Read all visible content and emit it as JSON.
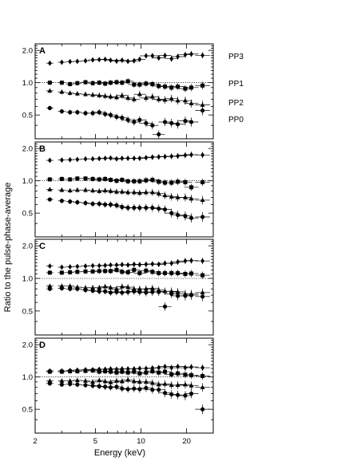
{
  "figure": {
    "ylabel": "Ratio to the pulse-phase-average",
    "xlabel": "Energy (keV)"
  },
  "chart_data": [
    {
      "type": "scatter",
      "panel_label": "A",
      "xscale": "log",
      "yscale": "log",
      "xlim": [
        2,
        30
      ],
      "ylim": [
        0.3,
        2.3
      ],
      "xticks": [
        "2",
        "5",
        "10",
        "20"
      ],
      "yticks": [
        "0.5",
        "1.0",
        "2.0"
      ],
      "reference_line": 1.0,
      "grid": false,
      "series": [
        {
          "name": "PP3",
          "marker": "diamond",
          "x": [
            2.5,
            3.0,
            3.4,
            3.8,
            4.3,
            4.8,
            5.3,
            5.8,
            6.3,
            6.9,
            7.5,
            8.2,
            9.0,
            9.8,
            10.8,
            11.9,
            13.1,
            14.4,
            15.9,
            17.5,
            19.6,
            21.5,
            25.5
          ],
          "y": [
            1.52,
            1.55,
            1.57,
            1.58,
            1.6,
            1.63,
            1.64,
            1.65,
            1.62,
            1.59,
            1.62,
            1.58,
            1.6,
            1.65,
            1.78,
            1.78,
            1.7,
            1.79,
            1.67,
            1.75,
            1.82,
            1.85,
            1.8
          ]
        },
        {
          "name": "PP1",
          "marker": "square",
          "x": [
            2.5,
            3.0,
            3.4,
            3.8,
            4.3,
            4.8,
            5.3,
            5.8,
            6.3,
            6.9,
            7.5,
            8.2,
            9.0,
            9.8,
            10.8,
            11.9,
            13.1,
            14.4,
            15.9,
            17.5,
            19.6,
            21.5,
            25.5
          ],
          "y": [
            1.0,
            1.0,
            0.97,
            0.99,
            1.01,
            0.99,
            1.0,
            0.98,
            1.0,
            1.01,
            1.0,
            1.03,
            0.96,
            0.96,
            0.98,
            0.97,
            0.93,
            0.92,
            0.9,
            0.92,
            0.88,
            0.9,
            0.94
          ]
        },
        {
          "name": "PP2",
          "marker": "triangle",
          "x": [
            2.5,
            3.0,
            3.4,
            3.8,
            4.3,
            4.8,
            5.3,
            5.8,
            6.3,
            6.9,
            7.5,
            8.2,
            9.0,
            9.8,
            10.8,
            11.9,
            13.1,
            14.4,
            15.9,
            17.5,
            19.6,
            21.5,
            25.5
          ],
          "y": [
            0.84,
            0.82,
            0.8,
            0.79,
            0.78,
            0.77,
            0.76,
            0.75,
            0.74,
            0.73,
            0.76,
            0.72,
            0.7,
            0.78,
            0.72,
            0.74,
            0.7,
            0.69,
            0.71,
            0.68,
            0.68,
            0.64,
            0.62
          ]
        },
        {
          "name": "PP0",
          "marker": "circle",
          "x": [
            2.5,
            3.0,
            3.4,
            3.8,
            4.3,
            4.8,
            5.3,
            5.8,
            6.3,
            6.9,
            7.5,
            8.2,
            9.0,
            9.8,
            10.8,
            11.9,
            13.1,
            14.4,
            15.9,
            17.5,
            19.6,
            21.5,
            25.5
          ],
          "y": [
            0.58,
            0.54,
            0.53,
            0.53,
            0.52,
            0.52,
            0.53,
            0.51,
            0.5,
            0.48,
            0.47,
            0.45,
            0.43,
            0.45,
            0.42,
            0.4,
            0.33,
            0.43,
            0.42,
            0.41,
            0.44,
            0.43,
            0.55
          ]
        }
      ]
    },
    {
      "type": "scatter",
      "panel_label": "B",
      "xscale": "log",
      "yscale": "log",
      "xlim": [
        2,
        30
      ],
      "ylim": [
        0.3,
        2.3
      ],
      "xticks": [
        "2",
        "5",
        "10",
        "20"
      ],
      "yticks": [
        "0.5",
        "1.0",
        "2.0"
      ],
      "reference_line": 1.0,
      "grid": false,
      "series": [
        {
          "name": "",
          "marker": "diamond",
          "x": [
            2.5,
            3.0,
            3.4,
            3.8,
            4.3,
            4.8,
            5.3,
            5.8,
            6.3,
            6.9,
            7.5,
            8.2,
            9.0,
            9.8,
            10.8,
            11.9,
            13.1,
            14.4,
            15.9,
            17.5,
            19.6,
            21.5,
            25.5
          ],
          "y": [
            1.55,
            1.56,
            1.57,
            1.58,
            1.6,
            1.6,
            1.61,
            1.62,
            1.63,
            1.6,
            1.62,
            1.62,
            1.62,
            1.62,
            1.64,
            1.66,
            1.67,
            1.68,
            1.69,
            1.7,
            1.73,
            1.75,
            1.74
          ]
        },
        {
          "name": "",
          "marker": "square",
          "x": [
            2.5,
            3.0,
            3.4,
            3.8,
            4.3,
            4.8,
            5.3,
            5.8,
            6.3,
            6.9,
            7.5,
            8.2,
            9.0,
            9.8,
            10.8,
            11.9,
            13.1,
            14.4,
            15.9,
            17.5,
            19.6,
            21.5,
            25.5
          ],
          "y": [
            1.03,
            1.04,
            1.03,
            1.05,
            1.05,
            1.04,
            1.03,
            1.04,
            1.02,
            1.0,
            1.02,
            0.99,
            0.99,
            0.99,
            1.01,
            1.02,
            0.98,
            0.96,
            0.96,
            0.98,
            0.97,
            0.87,
            0.97
          ]
        },
        {
          "name": "",
          "marker": "triangle",
          "x": [
            2.5,
            3.0,
            3.4,
            3.8,
            4.3,
            4.8,
            5.3,
            5.8,
            6.3,
            6.9,
            7.5,
            8.2,
            9.0,
            9.8,
            10.8,
            11.9,
            13.1,
            14.4,
            15.9,
            17.5,
            19.6,
            21.5,
            25.5
          ],
          "y": [
            0.83,
            0.82,
            0.81,
            0.82,
            0.82,
            0.81,
            0.8,
            0.81,
            0.8,
            0.79,
            0.79,
            0.78,
            0.78,
            0.77,
            0.78,
            0.78,
            0.76,
            0.73,
            0.71,
            0.7,
            0.7,
            0.68,
            0.66
          ]
        },
        {
          "name": "",
          "marker": "circle",
          "x": [
            2.5,
            3.0,
            3.4,
            3.8,
            4.3,
            4.8,
            5.3,
            5.8,
            6.3,
            6.9,
            7.5,
            8.2,
            9.0,
            9.8,
            10.8,
            11.9,
            13.1,
            14.4,
            15.9,
            17.5,
            19.6,
            21.5,
            25.5
          ],
          "y": [
            0.67,
            0.65,
            0.64,
            0.63,
            0.62,
            0.61,
            0.61,
            0.6,
            0.6,
            0.59,
            0.57,
            0.56,
            0.56,
            0.56,
            0.56,
            0.56,
            0.55,
            0.54,
            0.5,
            0.48,
            0.47,
            0.45,
            0.46
          ]
        }
      ]
    },
    {
      "type": "scatter",
      "panel_label": "C",
      "xscale": "log",
      "yscale": "log",
      "xlim": [
        2,
        30
      ],
      "ylim": [
        0.3,
        2.3
      ],
      "xticks": [
        "2",
        "5",
        "10",
        "20"
      ],
      "yticks": [
        "0.5",
        "1.0",
        "2.0"
      ],
      "reference_line": 1.0,
      "grid": false,
      "series": [
        {
          "name": "",
          "marker": "diamond",
          "x": [
            2.5,
            3.0,
            3.4,
            3.8,
            4.3,
            4.8,
            5.3,
            5.8,
            6.3,
            6.9,
            7.5,
            8.2,
            9.0,
            9.8,
            10.8,
            11.9,
            13.1,
            14.4,
            15.9,
            17.5,
            19.6,
            21.5,
            25.5
          ],
          "y": [
            1.3,
            1.27,
            1.28,
            1.29,
            1.3,
            1.31,
            1.31,
            1.32,
            1.33,
            1.33,
            1.34,
            1.33,
            1.35,
            1.34,
            1.35,
            1.36,
            1.35,
            1.38,
            1.38,
            1.42,
            1.45,
            1.46,
            1.45
          ]
        },
        {
          "name": "",
          "marker": "square",
          "x": [
            2.5,
            3.0,
            3.4,
            3.8,
            4.3,
            4.8,
            5.3,
            5.8,
            6.3,
            6.9,
            7.5,
            8.2,
            9.0,
            9.8,
            10.8,
            11.9,
            13.1,
            14.4,
            15.9,
            17.5,
            19.6,
            21.5,
            25.5
          ],
          "y": [
            1.13,
            1.13,
            1.14,
            1.15,
            1.16,
            1.16,
            1.17,
            1.17,
            1.17,
            1.2,
            1.15,
            1.14,
            1.2,
            1.12,
            1.18,
            1.15,
            1.12,
            1.12,
            1.12,
            1.12,
            1.1,
            1.11,
            1.07
          ]
        },
        {
          "name": "",
          "marker": "triangle",
          "x": [
            2.5,
            3.0,
            3.4,
            3.8,
            4.3,
            4.8,
            5.3,
            5.8,
            6.3,
            6.9,
            7.5,
            8.2,
            9.0,
            9.8,
            10.8,
            11.9,
            13.1,
            14.4,
            15.9,
            17.5,
            19.6,
            21.5,
            25.5
          ],
          "y": [
            0.85,
            0.85,
            0.85,
            0.83,
            0.82,
            0.82,
            0.82,
            0.84,
            0.82,
            0.8,
            0.84,
            0.83,
            0.8,
            0.8,
            0.8,
            0.81,
            0.78,
            0.76,
            0.76,
            0.75,
            0.72,
            0.72,
            0.74
          ]
        },
        {
          "name": "",
          "marker": "circle",
          "x": [
            2.5,
            3.0,
            3.4,
            3.8,
            4.3,
            4.8,
            5.3,
            5.8,
            6.3,
            6.9,
            7.5,
            8.2,
            9.0,
            9.8,
            10.8,
            11.9,
            13.1,
            14.4,
            15.9,
            17.5,
            19.6,
            21.5,
            25.5
          ],
          "y": [
            0.8,
            0.81,
            0.8,
            0.8,
            0.78,
            0.77,
            0.76,
            0.76,
            0.74,
            0.75,
            0.74,
            0.75,
            0.76,
            0.75,
            0.74,
            0.75,
            0.75,
            0.55,
            0.72,
            0.69,
            0.69,
            0.7,
            0.68
          ]
        }
      ]
    },
    {
      "type": "scatter",
      "panel_label": "D",
      "xscale": "log",
      "yscale": "log",
      "xlim": [
        2,
        30
      ],
      "ylim": [
        0.3,
        2.3
      ],
      "xticks": [
        "2",
        "5",
        "10",
        "20"
      ],
      "yticks": [
        "0.5",
        "1.0",
        "2.0"
      ],
      "reference_line": 1.0,
      "grid": false,
      "series": [
        {
          "name": "",
          "marker": "diamond",
          "x": [
            2.5,
            3.0,
            3.4,
            3.8,
            4.3,
            4.8,
            5.3,
            5.8,
            6.3,
            6.9,
            7.5,
            8.2,
            9.0,
            9.8,
            10.8,
            11.9,
            13.1,
            14.4,
            15.9,
            17.5,
            19.6,
            21.5,
            25.5
          ],
          "y": [
            1.14,
            1.14,
            1.15,
            1.16,
            1.17,
            1.17,
            1.18,
            1.18,
            1.19,
            1.18,
            1.19,
            1.19,
            1.19,
            1.2,
            1.2,
            1.21,
            1.22,
            1.25,
            1.22,
            1.25,
            1.22,
            1.24,
            1.22
          ]
        },
        {
          "name": "",
          "marker": "square",
          "x": [
            2.5,
            3.0,
            3.4,
            3.8,
            4.3,
            4.8,
            5.3,
            5.8,
            6.3,
            6.9,
            7.5,
            8.2,
            9.0,
            9.8,
            10.8,
            11.9,
            13.1,
            14.4,
            15.9,
            17.5,
            19.6,
            21.5,
            25.5
          ],
          "y": [
            1.12,
            1.12,
            1.13,
            1.13,
            1.14,
            1.15,
            1.12,
            1.13,
            1.12,
            1.1,
            1.12,
            1.1,
            1.12,
            1.08,
            1.1,
            1.13,
            1.1,
            1.12,
            1.06,
            1.08,
            1.05,
            1.04,
            1.02
          ]
        },
        {
          "name": "",
          "marker": "triangle",
          "x": [
            2.5,
            3.0,
            3.4,
            3.8,
            4.3,
            4.8,
            5.3,
            5.8,
            6.3,
            6.9,
            7.5,
            8.2,
            9.0,
            9.8,
            10.8,
            11.9,
            13.1,
            14.4,
            15.9,
            17.5,
            19.6,
            21.5,
            25.5
          ],
          "y": [
            0.92,
            0.92,
            0.92,
            0.93,
            0.92,
            0.9,
            0.93,
            0.91,
            0.89,
            0.92,
            0.91,
            0.94,
            0.91,
            0.9,
            0.9,
            0.88,
            0.85,
            0.86,
            0.84,
            0.84,
            0.85,
            0.83,
            0.8
          ]
        },
        {
          "name": "",
          "marker": "circle",
          "x": [
            2.5,
            3.0,
            3.4,
            3.8,
            4.3,
            4.8,
            5.3,
            5.8,
            6.3,
            6.9,
            7.5,
            8.2,
            9.0,
            9.8,
            10.8,
            11.9,
            13.1,
            14.4,
            15.9,
            17.5,
            19.6,
            21.5,
            25.5
          ],
          "y": [
            0.87,
            0.85,
            0.86,
            0.85,
            0.84,
            0.83,
            0.82,
            0.81,
            0.8,
            0.81,
            0.78,
            0.77,
            0.78,
            0.77,
            0.79,
            0.76,
            0.76,
            0.71,
            0.69,
            0.68,
            0.67,
            0.7,
            0.5
          ]
        }
      ]
    }
  ]
}
